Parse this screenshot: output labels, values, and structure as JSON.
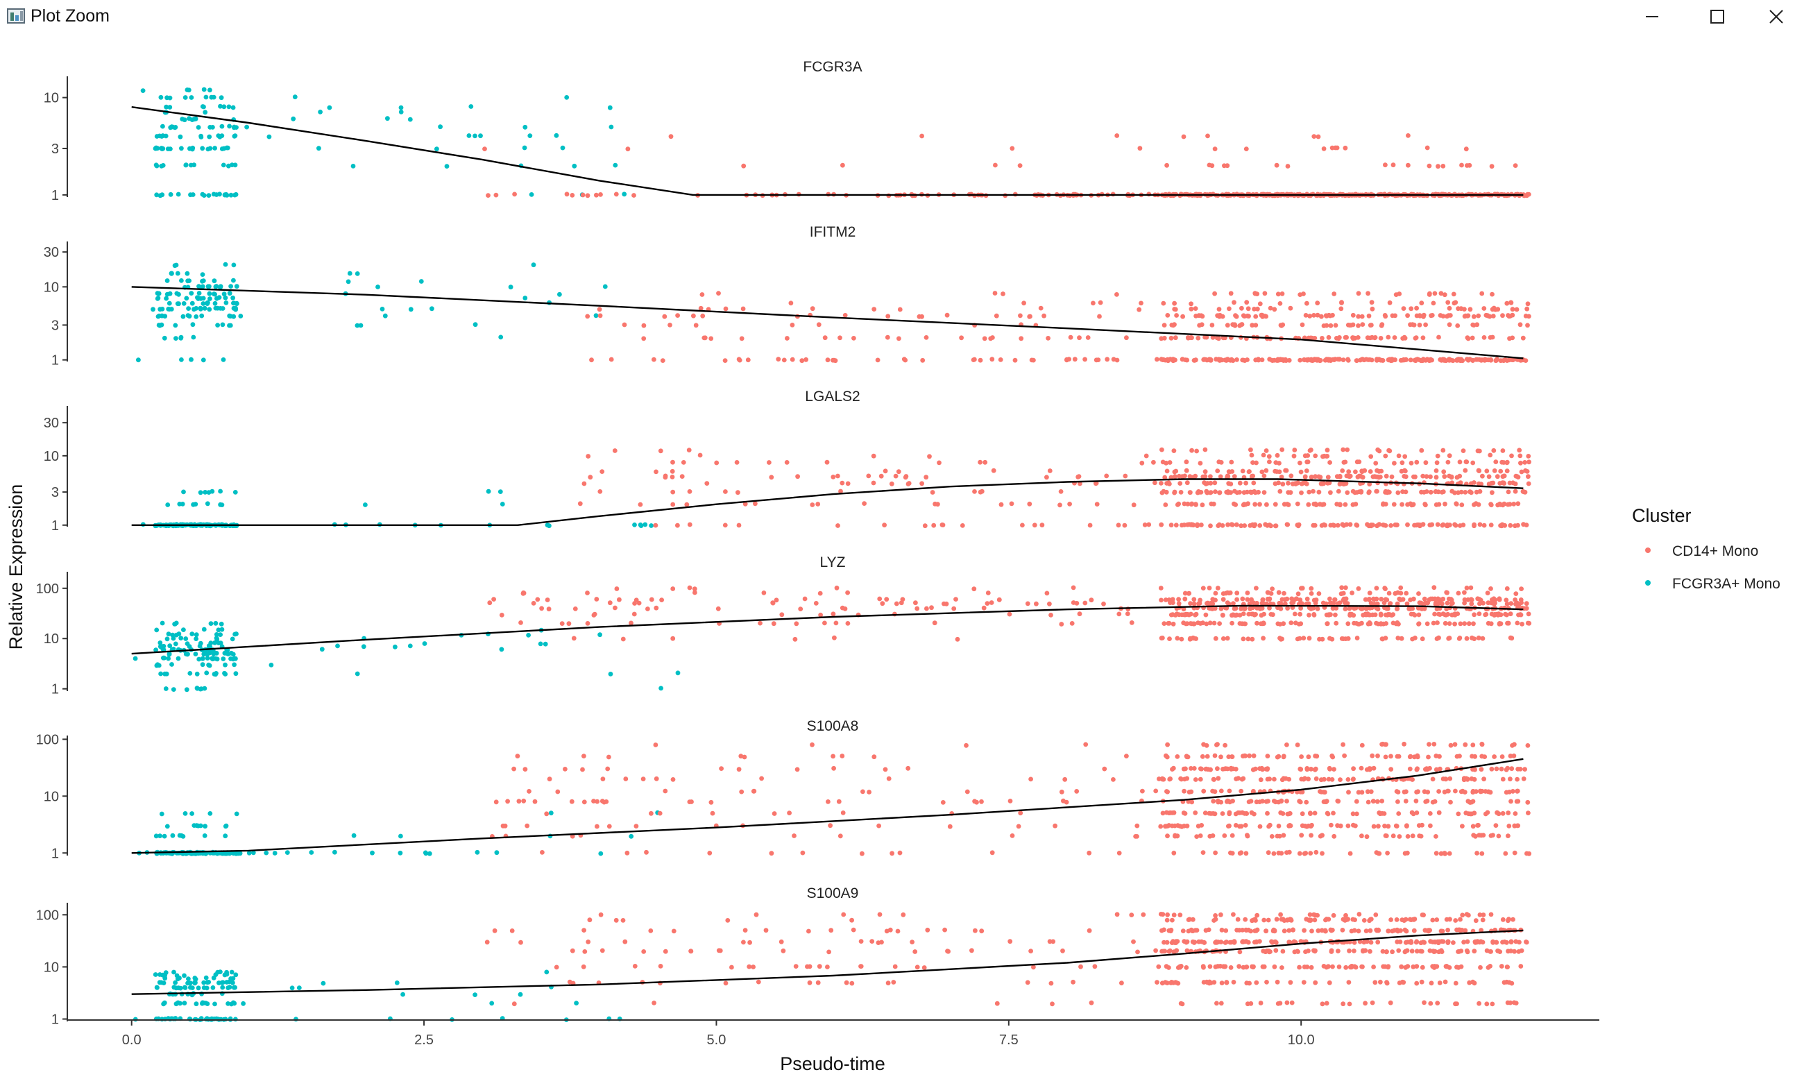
{
  "window": {
    "title": "Plot Zoom",
    "controls": {
      "minimize": "minimize-icon",
      "maximize": "maximize-icon",
      "close": "close-icon"
    }
  },
  "chart_data": {
    "type": "scatter",
    "facet": "rows",
    "xlabel": "Pseudo-time",
    "ylabel": "Relative Expression",
    "xlim": [
      -0.55,
      12.55
    ],
    "xticks": [
      0.0,
      2.5,
      5.0,
      7.5,
      10.0
    ],
    "xtick_labels": [
      "0.0",
      "2.5",
      "5.0",
      "7.5",
      "10.0"
    ],
    "yscale": "log10",
    "grid": false,
    "legend": {
      "title": "Cluster",
      "placement": "right",
      "entries": [
        {
          "label": "CD14+ Mono",
          "color": "#F8766D"
        },
        {
          "label": "FCGR3A+ Mono",
          "color": "#00BFC4"
        }
      ]
    },
    "panels": [
      {
        "title": "FCGR3A",
        "ylim": [
          0.95,
          16
        ],
        "yticks": [
          1,
          3,
          10
        ],
        "ytick_labels": [
          "1",
          "3",
          "10"
        ],
        "trend": {
          "x": [
            0,
            1,
            2,
            3,
            4,
            4.8,
            6,
            8,
            10,
            11.9
          ],
          "y": [
            8,
            5.5,
            3.6,
            2.3,
            1.4,
            1,
            1,
            1,
            1,
            1
          ]
        },
        "fcgr3a": {
          "x_range": [
            0,
            4.3
          ],
          "core_range": [
            0.2,
            0.9
          ],
          "count": 150,
          "levels": [
            1,
            2,
            3,
            4,
            5,
            6,
            7,
            8,
            10,
            12
          ],
          "weights": [
            3,
            3,
            4,
            2,
            2,
            2,
            2,
            2,
            2,
            1
          ]
        },
        "cd14": {
          "segments": [
            {
              "range": [
                2.9,
                6.5
              ],
              "count": 30
            },
            {
              "range": [
                6.5,
                8.8
              ],
              "count": 60
            },
            {
              "range": [
                8.8,
                11.95
              ],
              "count": 380
            }
          ],
          "levels": [
            1,
            2,
            3,
            4
          ],
          "weights": [
            40,
            2,
            1,
            0.5
          ]
        }
      },
      {
        "title": "IFITM2",
        "ylim": [
          0.95,
          40
        ],
        "yticks": [
          1,
          3,
          10,
          30
        ],
        "ytick_labels": [
          "1",
          "3",
          "10",
          "30"
        ],
        "trend": {
          "x": [
            0,
            2,
            4,
            6,
            8,
            10,
            11.9
          ],
          "y": [
            10,
            7.8,
            5.5,
            3.8,
            2.7,
            1.9,
            1.05
          ]
        },
        "fcgr3a": {
          "x_range": [
            0,
            4.3
          ],
          "core_range": [
            0.2,
            0.9
          ],
          "count": 150,
          "levels": [
            1,
            2,
            3,
            4,
            5,
            6,
            7,
            8,
            10,
            12,
            15,
            20
          ],
          "weights": [
            1,
            1,
            3,
            3,
            4,
            4,
            4,
            4,
            4,
            2,
            2,
            1
          ]
        },
        "cd14": {
          "segments": [
            {
              "range": [
                3.8,
                8.8
              ],
              "count": 110
            },
            {
              "range": [
                8.8,
                11.95
              ],
              "count": 500
            }
          ],
          "levels": [
            1,
            2,
            3,
            4,
            5,
            6,
            8
          ],
          "weights": [
            12,
            4,
            3,
            3,
            2,
            1,
            1
          ]
        }
      },
      {
        "title": "LGALS2",
        "ylim": [
          0.95,
          50
        ],
        "yticks": [
          1,
          3,
          10,
          30
        ],
        "ytick_labels": [
          "1",
          "3",
          "10",
          "30"
        ],
        "trend": {
          "x": [
            0,
            3.3,
            4,
            5,
            6,
            7,
            8,
            9,
            9.8,
            11,
            11.9
          ],
          "y": [
            1,
            1,
            1.35,
            2,
            2.8,
            3.6,
            4.2,
            4.6,
            4.6,
            4,
            3.4
          ]
        },
        "fcgr3a": {
          "x_range": [
            0,
            4.5
          ],
          "core_range": [
            0.2,
            0.9
          ],
          "count": 130,
          "levels": [
            1,
            2,
            3,
            5
          ],
          "weights": [
            20,
            2,
            1,
            0.3
          ]
        },
        "cd14": {
          "segments": [
            {
              "range": [
                3.8,
                8.8
              ],
              "count": 110
            },
            {
              "range": [
                8.8,
                11.95
              ],
              "count": 560
            }
          ],
          "levels": [
            1,
            2,
            3,
            4,
            5,
            6,
            8,
            10,
            12
          ],
          "weights": [
            5,
            3,
            3,
            3,
            3,
            2,
            2,
            1,
            1
          ]
        }
      },
      {
        "title": "LYZ",
        "ylim": [
          0.9,
          200
        ],
        "yticks": [
          1,
          10,
          100
        ],
        "ytick_labels": [
          "1",
          "10",
          "100"
        ],
        "trend": {
          "x": [
            0,
            2,
            4,
            6,
            8,
            9.5,
            11,
            11.9
          ],
          "y": [
            5,
            9.5,
            17,
            27,
            38,
            45,
            44,
            38
          ]
        },
        "fcgr3a": {
          "x_range": [
            0,
            4.8
          ],
          "core_range": [
            0.2,
            0.9
          ],
          "count": 150,
          "levels": [
            1,
            2,
            3,
            4,
            5,
            6,
            7,
            8,
            10,
            12,
            15,
            20
          ],
          "weights": [
            2,
            3,
            3,
            3,
            3,
            3,
            3,
            2,
            2,
            2,
            1,
            1
          ]
        },
        "cd14": {
          "segments": [
            {
              "range": [
                3,
                8.8
              ],
              "count": 110
            },
            {
              "range": [
                8.8,
                11.95
              ],
              "count": 560
            }
          ],
          "levels": [
            10,
            20,
            30,
            40,
            50,
            60,
            80,
            100
          ],
          "weights": [
            2,
            3,
            4,
            4,
            4,
            3,
            2,
            1
          ]
        }
      },
      {
        "title": "S100A8",
        "ylim": [
          0.9,
          110
        ],
        "yticks": [
          1,
          10,
          100
        ],
        "ytick_labels": [
          "1",
          "10",
          "100"
        ],
        "trend": {
          "x": [
            0,
            1,
            3,
            5,
            7,
            9,
            10,
            11,
            11.9
          ],
          "y": [
            1,
            1.1,
            1.8,
            2.8,
            4.7,
            8.6,
            13,
            23,
            45
          ]
        },
        "fcgr3a": {
          "x_range": [
            0,
            4.7
          ],
          "core_range": [
            0.2,
            0.9
          ],
          "count": 150,
          "levels": [
            1,
            2,
            3,
            5,
            8
          ],
          "weights": [
            20,
            2,
            1.5,
            1,
            0.5
          ]
        },
        "cd14": {
          "segments": [
            {
              "range": [
                3,
                8.8
              ],
              "count": 120
            },
            {
              "range": [
                8.8,
                11.95
              ],
              "count": 560
            }
          ],
          "levels": [
            1,
            2,
            3,
            5,
            8,
            12,
            20,
            30,
            50,
            80
          ],
          "weights": [
            2,
            2,
            3,
            3,
            3,
            3,
            3,
            3,
            2,
            1
          ]
        }
      },
      {
        "title": "S100A9",
        "ylim": [
          0.9,
          160
        ],
        "yticks": [
          1,
          10,
          100
        ],
        "ytick_labels": [
          "1",
          "10",
          "100"
        ],
        "trend": {
          "x": [
            0,
            2,
            4,
            6,
            8,
            9,
            10,
            11,
            11.9
          ],
          "y": [
            3,
            3.6,
            4.6,
            6.8,
            12,
            18,
            28,
            40,
            50
          ]
        },
        "fcgr3a": {
          "x_range": [
            0,
            4.7
          ],
          "core_range": [
            0.2,
            0.9
          ],
          "count": 150,
          "levels": [
            1,
            2,
            3,
            4,
            5,
            6,
            7,
            8
          ],
          "weights": [
            8,
            3,
            3,
            3,
            3,
            2,
            2,
            1
          ]
        },
        "cd14": {
          "segments": [
            {
              "range": [
                3,
                8.8
              ],
              "count": 110
            },
            {
              "range": [
                8.8,
                11.95
              ],
              "count": 560
            }
          ],
          "levels": [
            2,
            5,
            10,
            20,
            30,
            50,
            80,
            100
          ],
          "weights": [
            1,
            2,
            3,
            3,
            4,
            4,
            2,
            1
          ]
        }
      }
    ]
  }
}
